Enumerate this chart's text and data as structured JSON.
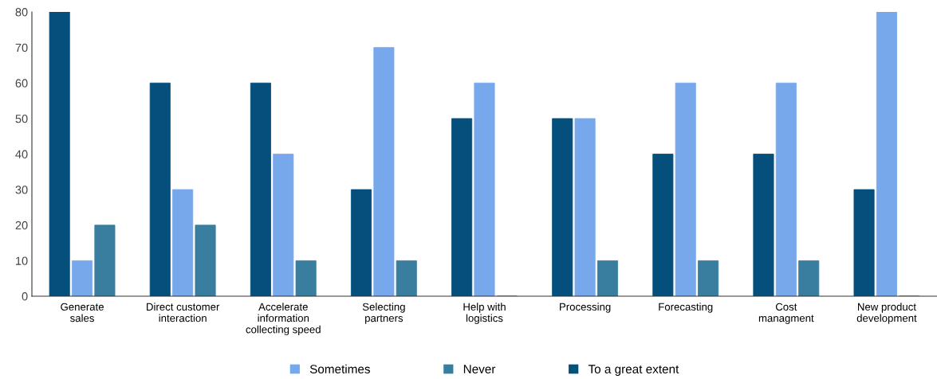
{
  "chart_data": {
    "type": "bar",
    "categories": [
      "Generate\nsales",
      "Direct customer\ninteraction",
      "Accelerate\ninformation\ncollecting speed",
      "Selecting\npartners",
      "Help with\nlogistics",
      "Processing",
      "Forecasting",
      "Cost\nmanagment",
      "New product\ndevelopment"
    ],
    "series": [
      {
        "name": "To a great extent",
        "color": "#044f7b",
        "values": [
          80,
          60,
          60,
          30,
          50,
          50,
          40,
          40,
          30
        ]
      },
      {
        "name": "Sometimes",
        "color": "#78a8ec",
        "values": [
          10,
          30,
          40,
          70,
          60,
          50,
          60,
          60,
          80
        ]
      },
      {
        "name": "Never",
        "color": "#397e9e",
        "values": [
          20,
          20,
          10,
          10,
          0,
          10,
          10,
          10,
          0
        ]
      }
    ],
    "ylim": [
      0,
      80
    ],
    "yticks": [
      0,
      10,
      20,
      30,
      40,
      50,
      60,
      70,
      80
    ],
    "grid": false,
    "legend": "bottom"
  }
}
